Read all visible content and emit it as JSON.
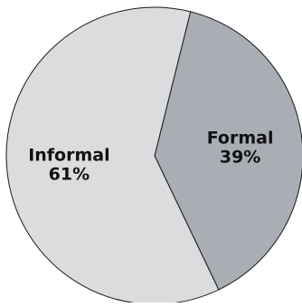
{
  "chart_data": {
    "type": "pie",
    "slices": [
      {
        "label": "Formal",
        "value": 39,
        "value_text": "39%",
        "color": "#a9adb4"
      },
      {
        "label": "Informal",
        "value": 61,
        "value_text": "61%",
        "color": "#dcdcde"
      }
    ],
    "start_angle_deg": 14,
    "direction": "clockwise",
    "edge_color": "#1a1a1a",
    "title": "",
    "legend": "none"
  }
}
